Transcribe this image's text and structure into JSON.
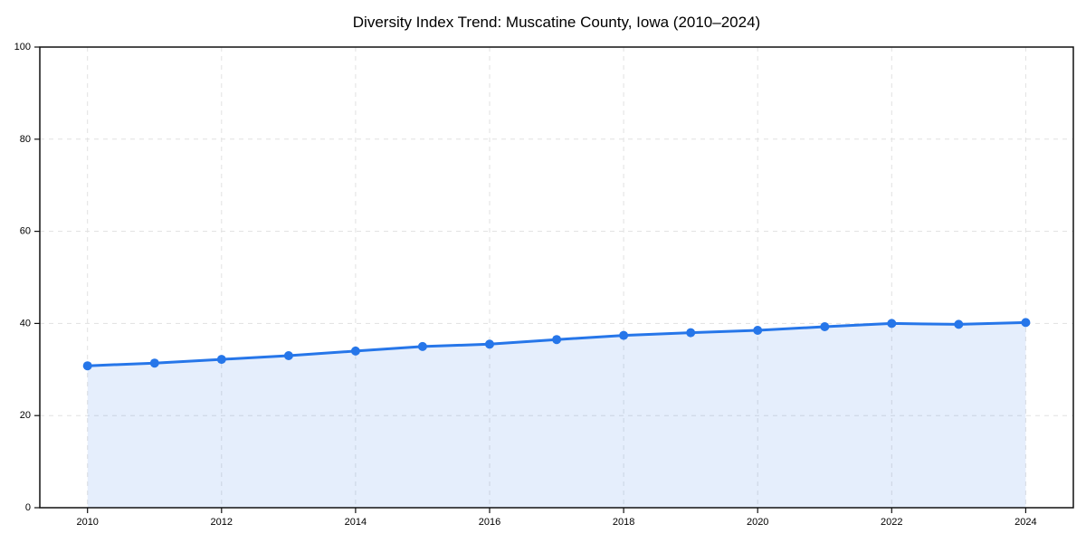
{
  "page": {
    "background_color": "#ffffff"
  },
  "chart_data": {
    "type": "line",
    "subtype": "area-filled-line-with-markers",
    "title": "Diversity Index Trend: Muscatine County, Iowa (2010–2024)",
    "xlabel": "",
    "ylabel": "",
    "x": [
      2010,
      2011,
      2012,
      2013,
      2014,
      2015,
      2016,
      2017,
      2018,
      2019,
      2020,
      2021,
      2022,
      2023,
      2024
    ],
    "series": [
      {
        "name": "Diversity Index",
        "values": [
          30.8,
          31.4,
          32.2,
          33.0,
          34.0,
          35.0,
          35.5,
          36.5,
          37.4,
          38.0,
          38.5,
          39.3,
          40.0,
          39.8,
          40.2
        ]
      }
    ],
    "ylim": [
      0,
      100
    ],
    "yticks": [
      0,
      20,
      40,
      60,
      80,
      100
    ],
    "xticks": [
      2010,
      2012,
      2014,
      2016,
      2018,
      2020,
      2022,
      2024
    ],
    "grid": true,
    "grid_style": "dashed",
    "legend_position": "none",
    "colors": {
      "line": "#2676e9",
      "marker": "#2676e9",
      "area_fill": "rgba(38, 118, 233, 0.12)",
      "grid": "#e1e1e1",
      "axis_frame": "#111111",
      "text": "#000000"
    },
    "style": {
      "line_width": 3,
      "marker_radius": 5,
      "title_font_size": 17,
      "tick_font_size": 11
    }
  }
}
